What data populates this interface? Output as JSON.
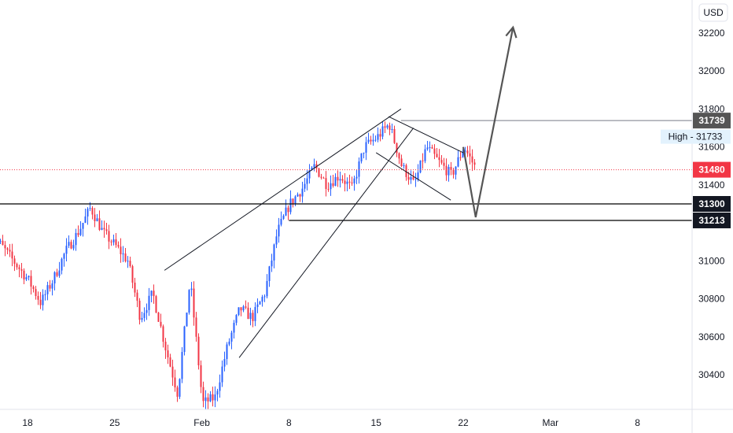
{
  "chart_data": {
    "type": "candlestick",
    "currency": "USD",
    "y_ticks": [
      30400,
      30600,
      30800,
      31000,
      31200,
      31400,
      31600,
      31800,
      32000,
      32200
    ],
    "y_range": [
      30200,
      32300
    ],
    "x_ticks": [
      {
        "label": "18",
        "date": "2021-01-18"
      },
      {
        "label": "25",
        "date": "2021-01-25"
      },
      {
        "label": "Feb",
        "date": "2021-02-01"
      },
      {
        "label": "8",
        "date": "2021-02-08"
      },
      {
        "label": "15",
        "date": "2021-02-15"
      },
      {
        "label": "22",
        "date": "2021-02-22"
      },
      {
        "label": "Mar",
        "date": "2021-03-01"
      },
      {
        "label": "8",
        "date": "2021-03-08"
      }
    ],
    "x_range": [
      "2021-01-15",
      "2021-03-12"
    ],
    "price_path": [
      [
        "2021-01-15",
        31150
      ],
      [
        "2021-01-18",
        30900
      ],
      [
        "2021-01-19",
        30780
      ],
      [
        "2021-01-20",
        30900
      ],
      [
        "2021-01-21",
        31050
      ],
      [
        "2021-01-22",
        31150
      ],
      [
        "2021-01-23",
        31280
      ],
      [
        "2021-01-24",
        31150
      ],
      [
        "2021-01-25",
        31080
      ],
      [
        "2021-01-26",
        31000
      ],
      [
        "2021-01-27",
        30700
      ],
      [
        "2021-01-28",
        30830
      ],
      [
        "2021-01-29",
        30550
      ],
      [
        "2021-01-30",
        30300
      ],
      [
        "2021-01-31",
        30900
      ],
      [
        "2021-02-01",
        30250
      ],
      [
        "2021-02-02",
        30280
      ],
      [
        "2021-02-03",
        30550
      ],
      [
        "2021-02-04",
        30750
      ],
      [
        "2021-02-05",
        30700
      ],
      [
        "2021-02-06",
        30830
      ],
      [
        "2021-02-07",
        31150
      ],
      [
        "2021-02-08",
        31300
      ],
      [
        "2021-02-09",
        31380
      ],
      [
        "2021-02-10",
        31500
      ],
      [
        "2021-02-11",
        31400
      ],
      [
        "2021-02-12",
        31450
      ],
      [
        "2021-02-13",
        31380
      ],
      [
        "2021-02-14",
        31600
      ],
      [
        "2021-02-15",
        31650
      ],
      [
        "2021-02-16",
        31720
      ],
      [
        "2021-02-17",
        31500
      ],
      [
        "2021-02-18",
        31400
      ],
      [
        "2021-02-19",
        31600
      ],
      [
        "2021-02-20",
        31520
      ],
      [
        "2021-02-21",
        31450
      ],
      [
        "2021-02-22",
        31600
      ],
      [
        "2021-02-23",
        31480
      ]
    ],
    "annotations": {
      "levels": [
        31739,
        31300,
        31213
      ],
      "wedge_upper": [
        [
          "2021-01-29",
          30950
        ],
        [
          "2021-02-17",
          31800
        ]
      ],
      "wedge_lower": [
        [
          "2021-02-04",
          30490
        ],
        [
          "2021-02-18",
          31700
        ]
      ],
      "flag_upper": [
        [
          "2021-02-16",
          31760
        ],
        [
          "2021-02-22",
          31570
        ]
      ],
      "flag_lower": [
        [
          "2021-02-15",
          31570
        ],
        [
          "2021-02-21",
          31320
        ]
      ],
      "projection": [
        [
          "2021-02-22",
          31600
        ],
        [
          "2021-02-23",
          31230
        ],
        [
          "2021-02-26",
          32230
        ]
      ]
    }
  },
  "price_axis": {
    "currency_label": "USD",
    "tag_31739": {
      "text": "31739",
      "color": "#555555",
      "text_color": "#ffffff"
    },
    "tag_high": {
      "text": "High - 31733",
      "color": "#e3f2fd",
      "text_color": "#131722"
    },
    "tag_31480": {
      "text": "31480",
      "color": "#f23645",
      "text_color": "#ffffff"
    },
    "tag_31300": {
      "text": "31300",
      "color": "#131722",
      "text_color": "#ffffff"
    },
    "tag_31213": {
      "text": "31213",
      "color": "#131722",
      "text_color": "#ffffff"
    }
  },
  "colors": {
    "up": "#2962ff",
    "down": "#f23645",
    "grid": "#e0e3eb",
    "line": "#000000",
    "arrow": "#555555"
  }
}
